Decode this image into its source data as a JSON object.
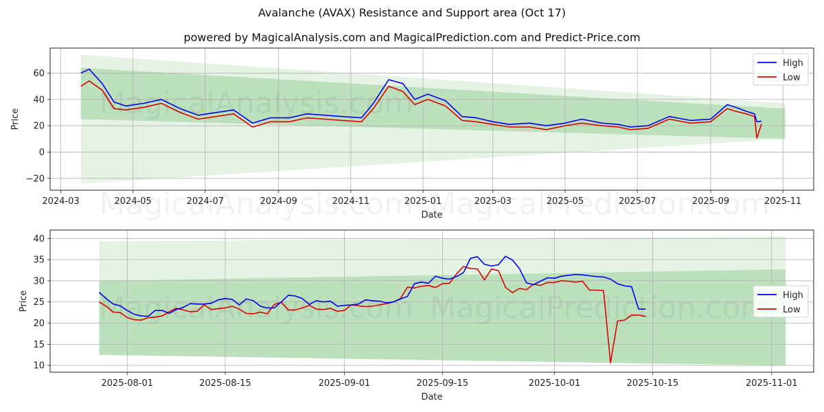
{
  "title": "Avalanche (AVAX) Resistance and Support area (Oct 17)",
  "subtitle": "powered by MagicalAnalysis.com and MagicalPrediction.com and Predict-Price.com",
  "watermarks": [
    "MagicalAnalysis.com",
    "MagicalPrediction.com"
  ],
  "colors": {
    "high": "#0000ee",
    "low": "#dd0000",
    "band": "#2ca02c",
    "grid": "#b0b0b0"
  },
  "chart_data": [
    {
      "type": "line",
      "xlabel": "Date",
      "ylabel": "Price",
      "x_ticks": [
        "2024-03",
        "2024-05",
        "2024-07",
        "2024-09",
        "2024-11",
        "2025-01",
        "2025-03",
        "2025-05",
        "2025-07",
        "2025-09",
        "2025-11"
      ],
      "y_ticks": [
        "60",
        "40",
        "20",
        "0",
        "−20"
      ],
      "ylim": [
        -29,
        79
      ],
      "xlim": [
        "2024-02-21",
        "2025-11-27"
      ],
      "grid": true,
      "legend": "top-right",
      "legend_labels": [
        "High",
        "Low"
      ],
      "series": [
        {
          "name": "High",
          "x": [
            "2024-03-18",
            "2024-03-25",
            "2024-04-05",
            "2024-04-15",
            "2024-04-25",
            "2024-05-10",
            "2024-05-25",
            "2024-06-10",
            "2024-06-25",
            "2024-07-10",
            "2024-07-25",
            "2024-08-10",
            "2024-08-25",
            "2024-09-10",
            "2024-09-25",
            "2024-10-10",
            "2024-10-25",
            "2024-11-10",
            "2024-11-20",
            "2024-12-03",
            "2024-12-15",
            "2024-12-25",
            "2025-01-05",
            "2025-01-20",
            "2025-02-03",
            "2025-02-15",
            "2025-03-01",
            "2025-03-15",
            "2025-04-01",
            "2025-04-15",
            "2025-05-01",
            "2025-05-15",
            "2025-06-01",
            "2025-06-15",
            "2025-06-25",
            "2025-07-10",
            "2025-07-28",
            "2025-08-15",
            "2025-09-01",
            "2025-09-15",
            "2025-09-22",
            "2025-10-01",
            "2025-10-08",
            "2025-10-10",
            "2025-10-14"
          ],
          "values": [
            60,
            63,
            52,
            38,
            35,
            37,
            40,
            33,
            28,
            30,
            32,
            22,
            26,
            26,
            29,
            28,
            27,
            26,
            37,
            55,
            52,
            40,
            44,
            39,
            27,
            26,
            23,
            21,
            22,
            20,
            22,
            25,
            22,
            21,
            19,
            20,
            27,
            24,
            25,
            36,
            34,
            31,
            29,
            23,
            23.5
          ]
        },
        {
          "name": "Low",
          "x": [
            "2024-03-18",
            "2024-03-25",
            "2024-04-05",
            "2024-04-15",
            "2024-04-25",
            "2024-05-10",
            "2024-05-25",
            "2024-06-10",
            "2024-06-25",
            "2024-07-10",
            "2024-07-25",
            "2024-08-10",
            "2024-08-25",
            "2024-09-10",
            "2024-09-25",
            "2024-10-10",
            "2024-10-25",
            "2024-11-10",
            "2024-11-20",
            "2024-12-03",
            "2024-12-15",
            "2024-12-25",
            "2025-01-05",
            "2025-01-20",
            "2025-02-03",
            "2025-02-15",
            "2025-03-01",
            "2025-03-15",
            "2025-04-01",
            "2025-04-15",
            "2025-05-01",
            "2025-05-15",
            "2025-06-01",
            "2025-06-15",
            "2025-06-25",
            "2025-07-10",
            "2025-07-28",
            "2025-08-15",
            "2025-09-01",
            "2025-09-15",
            "2025-09-22",
            "2025-10-01",
            "2025-10-08",
            "2025-10-10",
            "2025-10-14"
          ],
          "values": [
            50,
            54,
            47,
            33,
            32,
            34,
            37,
            30,
            25,
            27,
            29,
            19,
            23,
            23,
            26,
            25,
            24,
            23,
            33,
            50,
            46,
            36,
            40,
            35,
            24,
            23,
            21,
            19,
            19,
            17,
            20,
            22,
            20,
            19,
            17,
            18,
            25,
            22,
            23,
            33,
            31,
            29,
            27,
            10.5,
            21.5
          ]
        }
      ],
      "bands": [
        {
          "name": "outer",
          "x": [
            "2024-03-18",
            "2025-11-03"
          ],
          "upper": [
            74,
            37
          ],
          "lower": [
            -24,
            10
          ]
        },
        {
          "name": "inner",
          "x": [
            "2024-03-18",
            "2025-11-03"
          ],
          "upper": [
            64,
            33
          ],
          "lower": [
            25,
            10
          ]
        }
      ]
    },
    {
      "type": "line",
      "xlabel": "Date",
      "ylabel": "Price",
      "x_ticks": [
        "2025-08-01",
        "2025-08-15",
        "2025-09-01",
        "2025-09-15",
        "2025-10-01",
        "2025-10-15",
        "2025-11-01"
      ],
      "y_ticks": [
        "40",
        "35",
        "30",
        "25",
        "20",
        "15",
        "10"
      ],
      "ylim": [
        8.4,
        42
      ],
      "xlim": [
        "2025-07-21",
        "2025-11-07"
      ],
      "grid": true,
      "legend": "center-right",
      "legend_labels": [
        "High",
        "Low"
      ],
      "series": [
        {
          "name": "High",
          "x": [
            "2025-07-28",
            "2025-07-29",
            "2025-07-30",
            "2025-07-31",
            "2025-08-01",
            "2025-08-02",
            "2025-08-03",
            "2025-08-04",
            "2025-08-05",
            "2025-08-06",
            "2025-08-07",
            "2025-08-08",
            "2025-08-09",
            "2025-08-10",
            "2025-08-11",
            "2025-08-12",
            "2025-08-13",
            "2025-08-14",
            "2025-08-15",
            "2025-08-16",
            "2025-08-17",
            "2025-08-18",
            "2025-08-19",
            "2025-08-20",
            "2025-08-21",
            "2025-08-22",
            "2025-08-23",
            "2025-08-24",
            "2025-08-25",
            "2025-08-26",
            "2025-08-27",
            "2025-08-28",
            "2025-08-29",
            "2025-08-30",
            "2025-08-31",
            "2025-09-01",
            "2025-09-02",
            "2025-09-03",
            "2025-09-04",
            "2025-09-05",
            "2025-09-06",
            "2025-09-07",
            "2025-09-08",
            "2025-09-09",
            "2025-09-10",
            "2025-09-11",
            "2025-09-12",
            "2025-09-13",
            "2025-09-14",
            "2025-09-15",
            "2025-09-16",
            "2025-09-17",
            "2025-09-18",
            "2025-09-19",
            "2025-09-20",
            "2025-09-21",
            "2025-09-22",
            "2025-09-23",
            "2025-09-24",
            "2025-09-25",
            "2025-09-26",
            "2025-09-27",
            "2025-09-28",
            "2025-09-29",
            "2025-09-30",
            "2025-10-01",
            "2025-10-02",
            "2025-10-03",
            "2025-10-04",
            "2025-10-05",
            "2025-10-06",
            "2025-10-07",
            "2025-10-08",
            "2025-10-09",
            "2025-10-10",
            "2025-10-11",
            "2025-10-12",
            "2025-10-13",
            "2025-10-14"
          ],
          "values": [
            27.3,
            25.8,
            24.5,
            24.1,
            23,
            22.1,
            21.7,
            21.6,
            23,
            23,
            22.3,
            23.2,
            23.7,
            24.6,
            24.5,
            24.5,
            24.7,
            25.5,
            25.8,
            25.6,
            24.3,
            25.7,
            25.3,
            24,
            23.6,
            23.6,
            25,
            26.6,
            26.4,
            25.8,
            24.4,
            25.3,
            25,
            25.2,
            24,
            24.2,
            24.3,
            24.5,
            25.5,
            25.3,
            25.2,
            24.8,
            25,
            25.7,
            26.3,
            29.3,
            29.7,
            29.4,
            31.1,
            30.6,
            30.4,
            31,
            31.9,
            35.3,
            35.7,
            33.9,
            33.5,
            33.8,
            35.8,
            34.9,
            32.9,
            29.5,
            29.1,
            29.9,
            30.7,
            30.6,
            31.1,
            31.3,
            31.5,
            31.4,
            31.2,
            31,
            30.9,
            30.4,
            29.3,
            28.8,
            28.6,
            23.3,
            23.3
          ]
        },
        {
          "name": "Low",
          "x": [
            "2025-07-28",
            "2025-07-29",
            "2025-07-30",
            "2025-07-31",
            "2025-08-01",
            "2025-08-02",
            "2025-08-03",
            "2025-08-04",
            "2025-08-05",
            "2025-08-06",
            "2025-08-07",
            "2025-08-08",
            "2025-08-09",
            "2025-08-10",
            "2025-08-11",
            "2025-08-12",
            "2025-08-13",
            "2025-08-14",
            "2025-08-15",
            "2025-08-16",
            "2025-08-17",
            "2025-08-18",
            "2025-08-19",
            "2025-08-20",
            "2025-08-21",
            "2025-08-22",
            "2025-08-23",
            "2025-08-24",
            "2025-08-25",
            "2025-08-26",
            "2025-08-27",
            "2025-08-28",
            "2025-08-29",
            "2025-08-30",
            "2025-08-31",
            "2025-09-01",
            "2025-09-02",
            "2025-09-03",
            "2025-09-04",
            "2025-09-05",
            "2025-09-06",
            "2025-09-07",
            "2025-09-08",
            "2025-09-09",
            "2025-09-10",
            "2025-09-11",
            "2025-09-12",
            "2025-09-13",
            "2025-09-14",
            "2025-09-15",
            "2025-09-16",
            "2025-09-17",
            "2025-09-18",
            "2025-09-19",
            "2025-09-20",
            "2025-09-21",
            "2025-09-22",
            "2025-09-23",
            "2025-09-24",
            "2025-09-25",
            "2025-09-26",
            "2025-09-27",
            "2025-09-28",
            "2025-09-29",
            "2025-09-30",
            "2025-10-01",
            "2025-10-02",
            "2025-10-03",
            "2025-10-04",
            "2025-10-05",
            "2025-10-06",
            "2025-10-07",
            "2025-10-08",
            "2025-10-09",
            "2025-10-10",
            "2025-10-11",
            "2025-10-12",
            "2025-10-13",
            "2025-10-14"
          ],
          "values": [
            25,
            24,
            22.6,
            22.5,
            21.3,
            20.8,
            20.7,
            21.3,
            21.4,
            21.7,
            22.7,
            23.5,
            23.1,
            22.7,
            22.8,
            24.3,
            23.2,
            23.4,
            23.6,
            24,
            23.3,
            22.3,
            22.2,
            22.6,
            22.2,
            24.4,
            24.9,
            23.1,
            23.1,
            23.6,
            24.2,
            23.3,
            23.2,
            23.5,
            22.8,
            23,
            24.3,
            24.1,
            23.9,
            24,
            24.3,
            24.6,
            25,
            25.8,
            28.5,
            28.3,
            28.7,
            28.9,
            28.4,
            29.3,
            29.4,
            31.6,
            33.4,
            32.9,
            32.8,
            30.2,
            32.8,
            32.4,
            28.5,
            27.2,
            28.2,
            27.9,
            29.2,
            28.9,
            29.6,
            29.6,
            30,
            29.9,
            29.7,
            29.9,
            27.8,
            27.8,
            27.7,
            10.6,
            20.5,
            20.7,
            21.9,
            21.9,
            21.6
          ]
        }
      ],
      "bands": [
        {
          "name": "outer",
          "x": [
            "2025-07-28",
            "2025-11-03"
          ],
          "upper": [
            39.3,
            40.5
          ],
          "lower": [
            12.5,
            9.8
          ]
        },
        {
          "name": "inner",
          "x": [
            "2025-07-28",
            "2025-11-03"
          ],
          "upper": [
            30,
            32.7
          ],
          "lower": [
            12.5,
            10
          ]
        }
      ]
    }
  ]
}
